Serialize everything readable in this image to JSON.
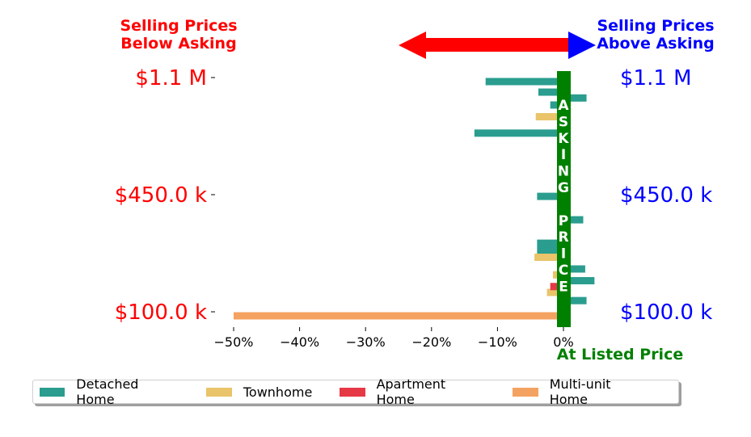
{
  "chart_data": {
    "type": "bar",
    "orientation": "horizontal",
    "header": {
      "left": [
        "Selling Prices",
        "Below Asking"
      ],
      "right": [
        "Selling Prices",
        "Above Asking"
      ],
      "left_color": "#ff0000",
      "right_color": "#0000ff"
    },
    "center_label": [
      "A",
      "S",
      "K",
      "I",
      "N",
      "G",
      "",
      "P",
      "R",
      "I",
      "C",
      "E"
    ],
    "center_color": "#008000",
    "xlabel_bottom": "At Listed Price",
    "xlim": [
      -52,
      2
    ],
    "xticks": [
      -50,
      -40,
      -30,
      -20,
      -10,
      0
    ],
    "xtick_labels": [
      "−50%",
      "−40%",
      "−30%",
      "−20%",
      "−10%",
      "0%"
    ],
    "y_labels_left": [
      "$1.1 M",
      "$450.0 k",
      "$100.0 k"
    ],
    "y_labels_right": [
      "$1.1 M",
      "$450.0 k",
      "$100.0 k"
    ],
    "legend": [
      {
        "name": "Detached Home",
        "color": "#2a9d8f"
      },
      {
        "name": "Townhome",
        "color": "#e9c46a"
      },
      {
        "name": "Apartment Home",
        "color": "#e63946"
      },
      {
        "name": "Multi-unit Home",
        "color": "#f4a261"
      }
    ],
    "series": [
      {
        "name": "Detached Home",
        "points": [
          {
            "price": 1100000,
            "pct": -11.8
          },
          {
            "price": 1055000,
            "pct": -3.8
          },
          {
            "price": 1030000,
            "pct": 3.5
          },
          {
            "price": 1000000,
            "pct": -2.0
          },
          {
            "price": 880000,
            "pct": -13.5
          },
          {
            "price": 610000,
            "pct": -4.0
          },
          {
            "price": 510000,
            "pct": 3.0
          },
          {
            "price": 410000,
            "pct": -4.0
          },
          {
            "price": 380000,
            "pct": -4.0
          },
          {
            "price": 300000,
            "pct": 3.3
          },
          {
            "price": 250000,
            "pct": 4.7
          },
          {
            "price": 165000,
            "pct": 3.5
          }
        ]
      },
      {
        "name": "Townhome",
        "points": [
          {
            "price": 950000,
            "pct": -4.2
          },
          {
            "price": 350000,
            "pct": -4.4
          },
          {
            "price": 275000,
            "pct": -1.6
          },
          {
            "price": 200000,
            "pct": -2.5
          }
        ]
      },
      {
        "name": "Apartment Home",
        "points": [
          {
            "price": 1075000,
            "pct": 1.0
          },
          {
            "price": 225000,
            "pct": -2.0
          }
        ]
      },
      {
        "name": "Multi-unit Home",
        "points": [
          {
            "price": 100000,
            "pct": -50.0
          }
        ]
      }
    ]
  }
}
